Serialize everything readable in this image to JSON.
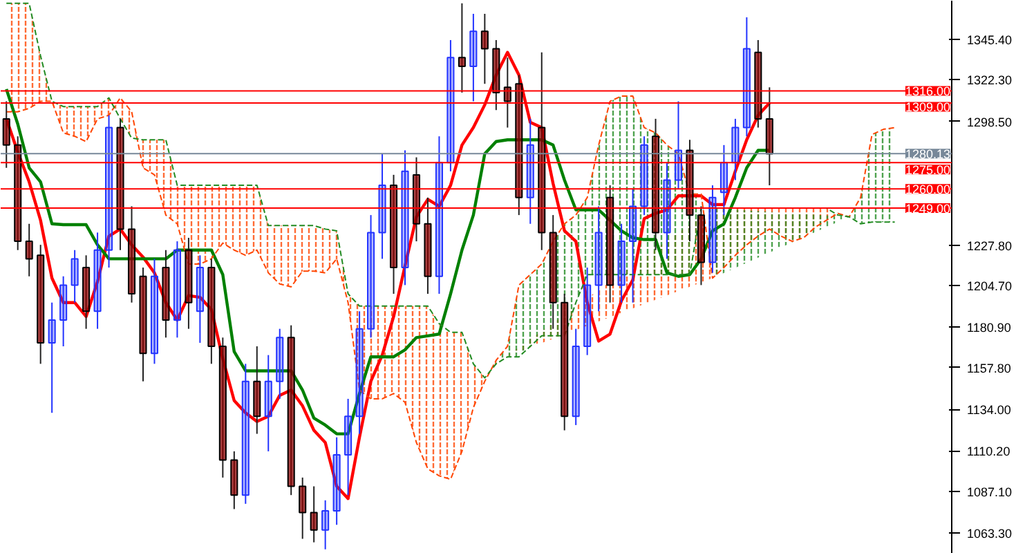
{
  "chart_data": {
    "type": "candlestick",
    "categories": [
      null,
      null,
      null,
      null,
      null,
      null,
      null,
      null,
      null,
      null,
      null,
      null,
      null,
      null,
      null,
      null,
      null,
      null,
      null,
      null,
      null,
      null,
      null,
      null,
      null,
      null,
      null,
      null,
      null,
      null,
      null,
      null,
      null,
      null,
      null,
      null,
      null,
      null,
      null,
      null,
      null,
      null,
      null,
      null,
      null,
      null,
      null,
      null,
      null,
      null,
      null,
      null,
      null,
      null,
      null,
      null,
      null,
      null,
      null,
      null,
      null,
      null,
      null,
      null,
      null,
      null,
      null,
      null,
      null,
      null,
      null,
      null,
      null,
      null,
      null,
      null,
      null,
      null,
      null
    ],
    "colors": [
      "#8b0000",
      "#8b0000",
      "#8b0000",
      "#8b0000",
      "#2233ff",
      "#2233ff",
      "#2233ff",
      "#8b0000",
      "#2233ff",
      "#2233ff",
      "#8b0000",
      "#8b0000",
      "#8b0000",
      "#2233ff",
      "#8b0000",
      "#2233ff",
      "#8b0000",
      "#2233ff",
      "#8b0000",
      "#8b0000",
      "#8b0000",
      "#2233ff",
      "#8b0000",
      "#2233ff",
      "#2233ff",
      "#8b0000",
      "#8b0000",
      "#8b0000",
      "#2233ff",
      "#2233ff",
      "#2233ff",
      "#2233ff",
      "#2233ff",
      "#2233ff",
      "#8b0000",
      "#2233ff",
      "#8b0000",
      "#8b0000",
      "#2233ff",
      "#2233ff",
      "#8b0000",
      "#2233ff",
      "#8b0000",
      "#8b0000",
      "#8b0000",
      "#8b0000",
      "#2233ff",
      "#8b0000",
      "#8b0000",
      "#8b0000",
      "#2233ff",
      "#2233ff",
      "#2233ff",
      "#8b0000",
      "#2233ff",
      "#2233ff",
      "#2233ff",
      "#8b0000",
      "#2233ff",
      "#2233ff",
      "#8b0000",
      "#8b0000",
      "#2233ff",
      "#2233ff",
      "#2233ff",
      "#2233ff",
      "#8b0000",
      "#8b0000",
      null,
      null,
      null,
      null,
      null,
      null,
      null,
      null,
      null,
      null,
      null
    ],
    "ohlc": [
      [
        1300,
        1310,
        1272,
        1285
      ],
      [
        1285,
        1290,
        1225,
        1230
      ],
      [
        1230,
        1240,
        1210,
        1220
      ],
      [
        1222,
        1228,
        1160,
        1172
      ],
      [
        1172,
        1195,
        1132,
        1185
      ],
      [
        1185,
        1210,
        1170,
        1205
      ],
      [
        1205,
        1225,
        1195,
        1220
      ],
      [
        1215,
        1222,
        1180,
        1190
      ],
      [
        1190,
        1235,
        1180,
        1225
      ],
      [
        1225,
        1302,
        1215,
        1295
      ],
      [
        1295,
        1300,
        1225,
        1237
      ],
      [
        1237,
        1250,
        1195,
        1200
      ],
      [
        1210,
        1215,
        1150,
        1166
      ],
      [
        1166,
        1220,
        1160,
        1210
      ],
      [
        1215,
        1225,
        1175,
        1185
      ],
      [
        1185,
        1230,
        1175,
        1225
      ],
      [
        1225,
        1232,
        1180,
        1195
      ],
      [
        1190,
        1222,
        1172,
        1215
      ],
      [
        1215,
        1220,
        1160,
        1170
      ],
      [
        1170,
        1175,
        1095,
        1105
      ],
      [
        1105,
        1110,
        1077,
        1085
      ],
      [
        1085,
        1160,
        1080,
        1150
      ],
      [
        1150,
        1170,
        1120,
        1130
      ],
      [
        1130,
        1165,
        1110,
        1150
      ],
      [
        1150,
        1180,
        1140,
        1175
      ],
      [
        1175,
        1182,
        1085,
        1090
      ],
      [
        1090,
        1095,
        1060,
        1075
      ],
      [
        1075,
        1090,
        1058,
        1065
      ],
      [
        1065,
        1082,
        1054,
        1076
      ],
      [
        1076,
        1118,
        1068,
        1108
      ],
      [
        1108,
        1140,
        1085,
        1130
      ],
      [
        1130,
        1190,
        1120,
        1180
      ],
      [
        1180,
        1245,
        1175,
        1235
      ],
      [
        1235,
        1280,
        1220,
        1262
      ],
      [
        1262,
        1268,
        1200,
        1215
      ],
      [
        1215,
        1282,
        1205,
        1270
      ],
      [
        1268,
        1278,
        1230,
        1240
      ],
      [
        1240,
        1255,
        1200,
        1210
      ],
      [
        1210,
        1290,
        1200,
        1275
      ],
      [
        1275,
        1345,
        1270,
        1335
      ],
      [
        1335,
        1366,
        1315,
        1330
      ],
      [
        1330,
        1360,
        1310,
        1350
      ],
      [
        1350,
        1360,
        1320,
        1340
      ],
      [
        1340,
        1345,
        1305,
        1315
      ],
      [
        1318,
        1335,
        1295,
        1310
      ],
      [
        1320,
        1325,
        1245,
        1255
      ],
      [
        1255,
        1300,
        1240,
        1285
      ],
      [
        1295,
        1338,
        1225,
        1235
      ],
      [
        1235,
        1245,
        1180,
        1195
      ],
      [
        1195,
        1200,
        1122,
        1130
      ],
      [
        1130,
        1180,
        1125,
        1170
      ],
      [
        1170,
        1215,
        1165,
        1205
      ],
      [
        1205,
        1250,
        1190,
        1235
      ],
      [
        1255,
        1262,
        1195,
        1205
      ],
      [
        1205,
        1240,
        1195,
        1230
      ],
      [
        1230,
        1260,
        1195,
        1250
      ],
      [
        1250,
        1290,
        1245,
        1285
      ],
      [
        1290,
        1300,
        1225,
        1235
      ],
      [
        1235,
        1275,
        1220,
        1265
      ],
      [
        1265,
        1310,
        1260,
        1282
      ],
      [
        1282,
        1288,
        1230,
        1245
      ],
      [
        1245,
        1250,
        1205,
        1218
      ],
      [
        1218,
        1262,
        1212,
        1255
      ],
      [
        1258,
        1285,
        1245,
        1275
      ],
      [
        1275,
        1300,
        1265,
        1295
      ],
      [
        1295,
        1358,
        1290,
        1340
      ],
      [
        1338,
        1345,
        1295,
        1300
      ],
      [
        1300,
        1318,
        1262,
        1280
      ],
      null,
      null,
      null,
      null,
      null,
      null,
      null,
      null,
      null,
      null,
      null
    ],
    "series": [
      {
        "type": "line",
        "color": "#ff0000",
        "values": [
          1300,
          1281,
          1264,
          1242,
          1209,
          1195,
          1195,
          1187,
          1207,
          1233,
          1237,
          1228,
          1221,
          1212,
          1195,
          1185,
          1199,
          1198,
          1191,
          1163,
          1139,
          1132,
          1127,
          1130,
          1142,
          1145,
          1136,
          1122,
          1115,
          1090,
          1083,
          1118,
          1150,
          1165,
          1187,
          1216,
          1244,
          1254,
          1250,
          1262,
          1285,
          1295,
          1308,
          1325,
          1338,
          1325,
          1298,
          1295,
          1263,
          1236,
          1230,
          1195,
          1173,
          1177,
          1196,
          1208,
          1243,
          1246,
          1248,
          1256,
          1256,
          1256,
          1251,
          1251,
          1270,
          1288,
          1302,
          1309,
          null,
          null,
          null,
          null,
          null,
          null,
          null,
          null,
          null,
          null,
          null
        ]
      },
      {
        "type": "line",
        "color": "#008000",
        "values": [
          1317,
          1297,
          1272,
          1264,
          1240,
          1239.5,
          1239.5,
          1239.5,
          1228,
          1220,
          1220,
          1220,
          1220,
          1220,
          1220,
          1225,
          1225,
          1225,
          1225,
          1211,
          1167,
          1156,
          1156,
          1156,
          1156,
          1156,
          1145,
          1129,
          1125,
          1120,
          1120,
          1143,
          1164,
          1164,
          1164,
          1168,
          1175,
          1176,
          1177,
          1200,
          1225,
          1245,
          1280,
          1287,
          1288,
          1288,
          1288,
          1288,
          1285,
          1265,
          1248,
          1248,
          1248,
          1242,
          1236,
          1232,
          1231,
          1231,
          1212,
          1210,
          1211,
          1220,
          1236,
          1240,
          1255,
          1272,
          1282,
          1282,
          null,
          null,
          null,
          null,
          null,
          null,
          null,
          null,
          null,
          null,
          null
        ]
      },
      {
        "type": "line",
        "color": "#ff4500",
        "line_style": "dashed",
        "values": [
          1304,
          1304,
          1306,
          1310,
          1310,
          1292,
          1290,
          1287,
          1300,
          1302,
          1312,
          1304,
          1272,
          1268,
          1245,
          1240,
          1217,
          1217,
          1220,
          1229,
          1225,
          1222,
          1225,
          1212,
          1205.6,
          1204,
          1213,
          1213,
          1212,
          1220,
          1195,
          1145,
          1140,
          1140,
          1143,
          1138,
          1115,
          1100,
          1096,
          1094,
          1110,
          1135,
          1150,
          1162,
          1170,
          1205,
          1211,
          1217,
          1230,
          1240,
          1245,
          1255,
          1285,
          1310,
          1313,
          1313,
          1295,
          1292,
          1285,
          1280,
          1257,
          1257,
          1209,
          1215,
          1222,
          1228,
          1233,
          1237,
          1233,
          1230,
          1232,
          1238,
          1242,
          1246,
          1244,
          1255,
          1291,
          1294,
          1295
        ],
        "lower": [
          1304,
          1304,
          1306,
          1310,
          1310,
          1292,
          1290,
          1287,
          1300,
          1302,
          1312,
          1304,
          1272,
          1268,
          1245,
          1240,
          1217,
          1217,
          1220,
          1229,
          1225,
          1222,
          1225,
          1212,
          1205.6,
          1204,
          1213,
          1213,
          1212,
          1220,
          1195,
          1145,
          1140,
          1140,
          1143,
          1138,
          1115,
          1100,
          1096,
          1094,
          1110,
          1135,
          1150,
          1162,
          null,
          null,
          null,
          null,
          null,
          null,
          null,
          null,
          null,
          null,
          null,
          null,
          null,
          null,
          null,
          null,
          null,
          null,
          1209,
          1215,
          1222,
          1228,
          1233,
          1237,
          1233,
          1230,
          1232,
          1238,
          1242,
          1246,
          1244,
          null,
          null,
          null,
          null
        ],
        "upper": [
          1366,
          1366,
          1366,
          1336,
          1310,
          1307,
          1307,
          1307,
          1307,
          1312,
          1300,
          1289,
          1288,
          1288,
          1288,
          1262,
          1262,
          1262,
          1262,
          1262,
          1262,
          1262,
          1262,
          1239,
          1239,
          1239,
          1239,
          1239,
          1237,
          1236,
          1200,
          1193,
          1193,
          1193,
          1193,
          1193,
          1193,
          1193,
          1183,
          1178,
          1178,
          1160,
          1152,
          1160,
          null,
          null,
          null,
          null,
          null,
          null,
          null,
          null,
          null,
          null,
          null,
          null,
          null,
          null,
          null,
          null,
          null,
          null,
          1249,
          1249,
          1249,
          1249,
          1249,
          1249,
          1249,
          1249,
          1249,
          1249,
          1249,
          1245,
          1244,
          null,
          null,
          null,
          null
        ]
      },
      {
        "type": "line",
        "color": "#228b22",
        "line_style": "dashed",
        "lower": [
          null,
          null,
          null,
          null,
          null,
          null,
          null,
          null,
          null,
          null,
          null,
          null,
          null,
          null,
          null,
          null,
          null,
          null,
          null,
          null,
          null,
          null,
          null,
          null,
          null,
          null,
          null,
          null,
          null,
          null,
          null,
          null,
          null,
          null,
          null,
          null,
          null,
          null,
          null,
          null,
          null,
          null,
          null,
          1160,
          1164,
          1164,
          1170,
          1176,
          1176,
          1176,
          1195,
          1211,
          1211,
          1211,
          1211,
          1211,
          1211,
          1211,
          1211,
          1211,
          1211,
          1249,
          1249,
          null,
          null,
          null,
          null,
          null,
          null,
          null,
          null,
          null,
          null,
          null,
          1244,
          1240,
          1241,
          1241,
          1241
        ],
        "upper": [
          null,
          null,
          null,
          null,
          null,
          null,
          null,
          null,
          null,
          null,
          null,
          null,
          null,
          null,
          null,
          null,
          null,
          null,
          null,
          null,
          null,
          null,
          null,
          null,
          null,
          null,
          null,
          null,
          null,
          null,
          null,
          null,
          null,
          null,
          null,
          null,
          null,
          null,
          null,
          null,
          null,
          null,
          null,
          1162,
          1170,
          1205,
          1211,
          1217,
          1230,
          1240,
          1245,
          1255,
          1285,
          1310,
          1313,
          1313,
          1295,
          1292,
          1285,
          1280,
          1257,
          1257,
          1209,
          null,
          null,
          null,
          null,
          null,
          null,
          null,
          null,
          null,
          null,
          null,
          1244,
          1255,
          1291,
          1294,
          1295
        ],
        "values": [
          1366,
          1366,
          1366,
          1336,
          1310,
          1307,
          1307,
          1307,
          1307,
          1312,
          1300,
          1289,
          1288,
          1288,
          1288,
          1262,
          1262,
          1262,
          1262,
          1262,
          1262,
          1262,
          1262,
          1239,
          1239,
          1239,
          1239,
          1239,
          1237,
          1236,
          1200,
          1193,
          1193,
          1193,
          1193,
          1193,
          1193,
          1193,
          1183,
          1178,
          1178,
          1160,
          1152,
          1160,
          1164,
          1164,
          1170,
          1176,
          1176,
          1176,
          1195,
          1211,
          1211,
          1211,
          1211,
          1211,
          1211,
          1211,
          1211,
          1211,
          1211,
          1249,
          1249,
          1249,
          1249,
          1249,
          1249,
          1249,
          1249,
          1249,
          1249,
          1249,
          1249,
          1245,
          1244,
          1240,
          1241,
          1241,
          1241
        ]
      }
    ],
    "ylim": [
      1051.5,
      1367.5
    ],
    "yticks": [
      {
        "value": 1345.4,
        "label": "1345.40"
      },
      {
        "value": 1322.3,
        "label": "1322.30"
      },
      {
        "value": 1298.5,
        "label": "1298.50"
      },
      {
        "value": 1227.8,
        "label": "1227.80"
      },
      {
        "value": 1204.7,
        "label": "1204.70"
      },
      {
        "value": 1180.9,
        "label": "1180.90"
      },
      {
        "value": 1157.8,
        "label": "1157.80"
      },
      {
        "value": 1134,
        "label": "1134.00"
      },
      {
        "value": 1110.2,
        "label": "1110.20"
      },
      {
        "value": 1087.1,
        "label": "1087.10"
      },
      {
        "value": 1063.3,
        "label": "1063.30"
      }
    ],
    "ref_lines": [
      {
        "axis": "y",
        "value": 1316,
        "label": "1316.00",
        "color": "#ff0000"
      },
      {
        "axis": "y",
        "value": 1309,
        "label": "1309.00",
        "color": "#ff0000"
      },
      {
        "axis": "y",
        "value": 1280.13,
        "label": "1280.13",
        "color": "#778899"
      },
      {
        "axis": "y",
        "value": 1275,
        "label": "1275.00",
        "color": "#ff0000"
      },
      {
        "axis": "y",
        "value": 1260,
        "label": "1260.00",
        "color": "#ff0000"
      },
      {
        "axis": "y",
        "value": 1249,
        "label": "1249.00",
        "color": "#ff0000"
      }
    ],
    "tick_labels": "y"
  }
}
